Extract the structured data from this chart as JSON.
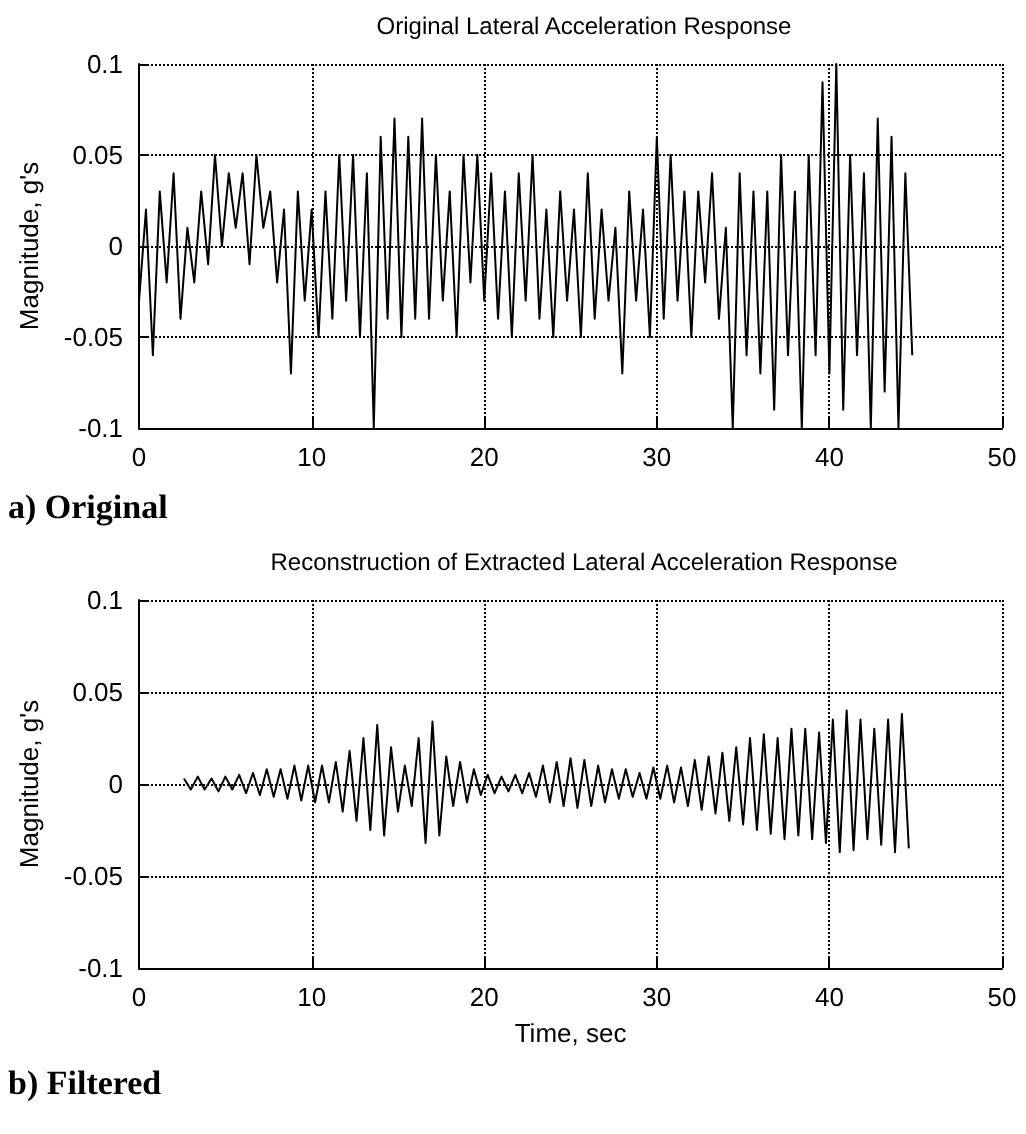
{
  "chart_data": [
    {
      "type": "line",
      "title": "Original Lateral Acceleration Response",
      "ylabel": "Magnitude, g's",
      "annotations": [
        "a) Original"
      ],
      "x": [
        0,
        0.4,
        0.8,
        1.2,
        1.6,
        2,
        2.4,
        2.8,
        3.2,
        3.6,
        4,
        4.4,
        4.8,
        5.2,
        5.6,
        6,
        6.4,
        6.8,
        7.2,
        7.6,
        8,
        8.4,
        8.8,
        9.2,
        9.6,
        10,
        10.4,
        10.8,
        11.2,
        11.6,
        12,
        12.4,
        12.8,
        13.2,
        13.6,
        14,
        14.4,
        14.8,
        15.2,
        15.6,
        16,
        16.4,
        16.8,
        17.2,
        17.6,
        18,
        18.4,
        18.8,
        19.2,
        19.6,
        20,
        20.4,
        20.8,
        21.2,
        21.6,
        22,
        22.4,
        22.8,
        23.2,
        23.6,
        24,
        24.4,
        24.8,
        25.2,
        25.6,
        26,
        26.4,
        26.8,
        27.2,
        27.6,
        28,
        28.4,
        28.8,
        29.2,
        29.6,
        30,
        30.4,
        30.8,
        31.2,
        31.6,
        32,
        32.4,
        32.8,
        33.2,
        33.6,
        34,
        34.4,
        34.8,
        35.2,
        35.6,
        36,
        36.4,
        36.8,
        37.2,
        37.6,
        38,
        38.4,
        38.8,
        39.2,
        39.6,
        40,
        40.4,
        40.8,
        41.2,
        41.6,
        42,
        42.4,
        42.8,
        43.2,
        43.6,
        44,
        44.4,
        44.8
      ],
      "series": [
        {
          "color": "#000000",
          "values": [
            -0.03,
            0.02,
            -0.06,
            0.03,
            -0.02,
            0.04,
            -0.04,
            0.01,
            -0.02,
            0.03,
            -0.01,
            0.05,
            0.0,
            0.04,
            0.01,
            0.04,
            -0.01,
            0.05,
            0.01,
            0.03,
            -0.02,
            0.02,
            -0.07,
            0.03,
            -0.03,
            0.02,
            -0.05,
            0.03,
            -0.04,
            0.05,
            -0.03,
            0.05,
            -0.05,
            0.04,
            -0.1,
            0.06,
            -0.04,
            0.07,
            -0.05,
            0.06,
            -0.04,
            0.07,
            -0.04,
            0.05,
            -0.03,
            0.03,
            -0.05,
            0.05,
            -0.02,
            0.05,
            -0.03,
            0.04,
            -0.04,
            0.03,
            -0.05,
            0.04,
            -0.03,
            0.05,
            -0.04,
            0.02,
            -0.05,
            0.03,
            -0.03,
            0.02,
            -0.05,
            0.04,
            -0.04,
            0.02,
            -0.03,
            0.01,
            -0.07,
            0.03,
            -0.03,
            0.02,
            -0.05,
            0.06,
            -0.04,
            0.05,
            -0.03,
            0.03,
            -0.05,
            0.03,
            -0.02,
            0.04,
            -0.04,
            0.01,
            -0.1,
            0.04,
            -0.06,
            0.03,
            -0.07,
            0.03,
            -0.09,
            0.05,
            -0.06,
            0.03,
            -0.1,
            0.05,
            -0.06,
            0.09,
            -0.07,
            0.1,
            -0.09,
            0.05,
            -0.06,
            0.04,
            -0.1,
            0.07,
            -0.08,
            0.06,
            -0.1,
            0.04,
            -0.06
          ]
        }
      ],
      "xlim": [
        0,
        50
      ],
      "xticks": [
        0,
        10,
        20,
        30,
        40,
        50
      ],
      "ylim": [
        -0.1,
        0.1
      ],
      "yticks": [
        -0.1,
        -0.05,
        0,
        0.05,
        0.1
      ],
      "grid": true,
      "line_style": "solid",
      "marker": "none"
    },
    {
      "type": "line",
      "title": "Reconstruction of Extracted Lateral Acceleration Response",
      "xlabel": "Time, sec",
      "ylabel": "Magnitude, g's",
      "annotations": [
        "b) Filtered"
      ],
      "x": [
        2.6,
        3,
        3.4,
        3.8,
        4.2,
        4.6,
        5,
        5.4,
        5.8,
        6.2,
        6.6,
        7,
        7.4,
        7.8,
        8.2,
        8.6,
        9,
        9.4,
        9.8,
        10.2,
        10.6,
        11,
        11.4,
        11.8,
        12.2,
        12.6,
        13,
        13.4,
        13.8,
        14.2,
        14.6,
        15,
        15.4,
        15.8,
        16.2,
        16.6,
        17,
        17.4,
        17.8,
        18.2,
        18.6,
        19,
        19.4,
        19.8,
        20.2,
        20.6,
        21,
        21.4,
        21.8,
        22.2,
        22.6,
        23,
        23.4,
        23.8,
        24.2,
        24.6,
        25,
        25.4,
        25.8,
        26.2,
        26.6,
        27,
        27.4,
        27.8,
        28.2,
        28.6,
        29,
        29.4,
        29.8,
        30.2,
        30.6,
        31,
        31.4,
        31.8,
        32.2,
        32.6,
        33,
        33.4,
        33.8,
        34.2,
        34.6,
        35,
        35.4,
        35.8,
        36.2,
        36.6,
        37,
        37.4,
        37.8,
        38.2,
        38.6,
        39,
        39.4,
        39.8,
        40.2,
        40.6,
        41,
        41.4,
        41.8,
        42.2,
        42.6,
        43,
        43.4,
        43.8,
        44.2,
        44.6
      ],
      "series": [
        {
          "color": "#000000",
          "values": [
            0.003,
            -0.003,
            0.004,
            -0.003,
            0.003,
            -0.004,
            0.004,
            -0.003,
            0.005,
            -0.005,
            0.006,
            -0.006,
            0.008,
            -0.007,
            0.008,
            -0.008,
            0.01,
            -0.009,
            0.01,
            -0.01,
            0.01,
            -0.01,
            0.012,
            -0.015,
            0.018,
            -0.02,
            0.025,
            -0.025,
            0.032,
            -0.028,
            0.02,
            -0.015,
            0.01,
            -0.012,
            0.025,
            -0.032,
            0.034,
            -0.028,
            0.015,
            -0.012,
            0.012,
            -0.01,
            0.008,
            -0.006,
            0.005,
            -0.005,
            0.004,
            -0.004,
            0.005,
            -0.005,
            0.006,
            -0.007,
            0.01,
            -0.01,
            0.012,
            -0.012,
            0.014,
            -0.013,
            0.013,
            -0.012,
            0.01,
            -0.01,
            0.008,
            -0.008,
            0.008,
            -0.007,
            0.006,
            -0.008,
            0.009,
            -0.008,
            0.01,
            -0.01,
            0.009,
            -0.012,
            0.013,
            -0.014,
            0.015,
            -0.016,
            0.017,
            -0.02,
            0.02,
            -0.022,
            0.025,
            -0.025,
            0.027,
            -0.027,
            0.025,
            -0.03,
            0.03,
            -0.028,
            0.03,
            -0.03,
            0.028,
            -0.032,
            0.035,
            -0.037,
            0.04,
            -0.036,
            0.035,
            -0.03,
            0.03,
            -0.033,
            0.035,
            -0.037,
            0.038,
            -0.035
          ]
        }
      ],
      "xlim": [
        0,
        50
      ],
      "xticks": [
        0,
        10,
        20,
        30,
        40,
        50
      ],
      "ylim": [
        -0.1,
        0.1
      ],
      "yticks": [
        -0.1,
        -0.05,
        0,
        0.05,
        0.1
      ],
      "grid": true,
      "line_style": "solid",
      "marker": "none"
    }
  ]
}
